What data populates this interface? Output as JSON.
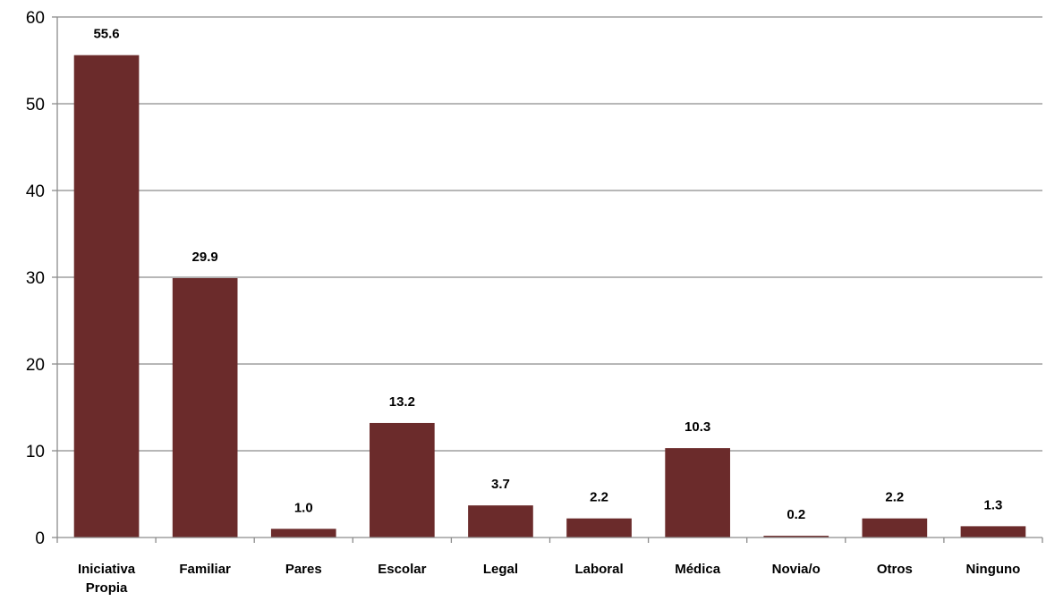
{
  "chart_data": {
    "type": "bar",
    "categories": [
      [
        "Iniciativa",
        "Propia"
      ],
      [
        "Familiar"
      ],
      [
        "Pares"
      ],
      [
        "Escolar"
      ],
      [
        "Legal"
      ],
      [
        "Laboral"
      ],
      [
        "Médica"
      ],
      [
        "Novia/o"
      ],
      [
        "Otros"
      ],
      [
        "Ninguno"
      ]
    ],
    "values": [
      55.6,
      29.9,
      1.0,
      13.2,
      3.7,
      2.2,
      10.3,
      0.2,
      2.2,
      1.3
    ],
    "value_labels": [
      "55.6",
      "29.9",
      "1.0",
      "13.2",
      "3.7",
      "2.2",
      "10.3",
      "0.2",
      "2.2",
      "1.3"
    ],
    "ylim": [
      0,
      60
    ],
    "yticks": [
      "0",
      "10",
      "20",
      "30",
      "40",
      "50",
      "60"
    ],
    "grid": true,
    "title": "",
    "xlabel": "",
    "ylabel": "",
    "colors": {
      "bar": "#6b2b2b",
      "grid": "#8c8c8c",
      "axis": "#8c8c8c"
    }
  }
}
